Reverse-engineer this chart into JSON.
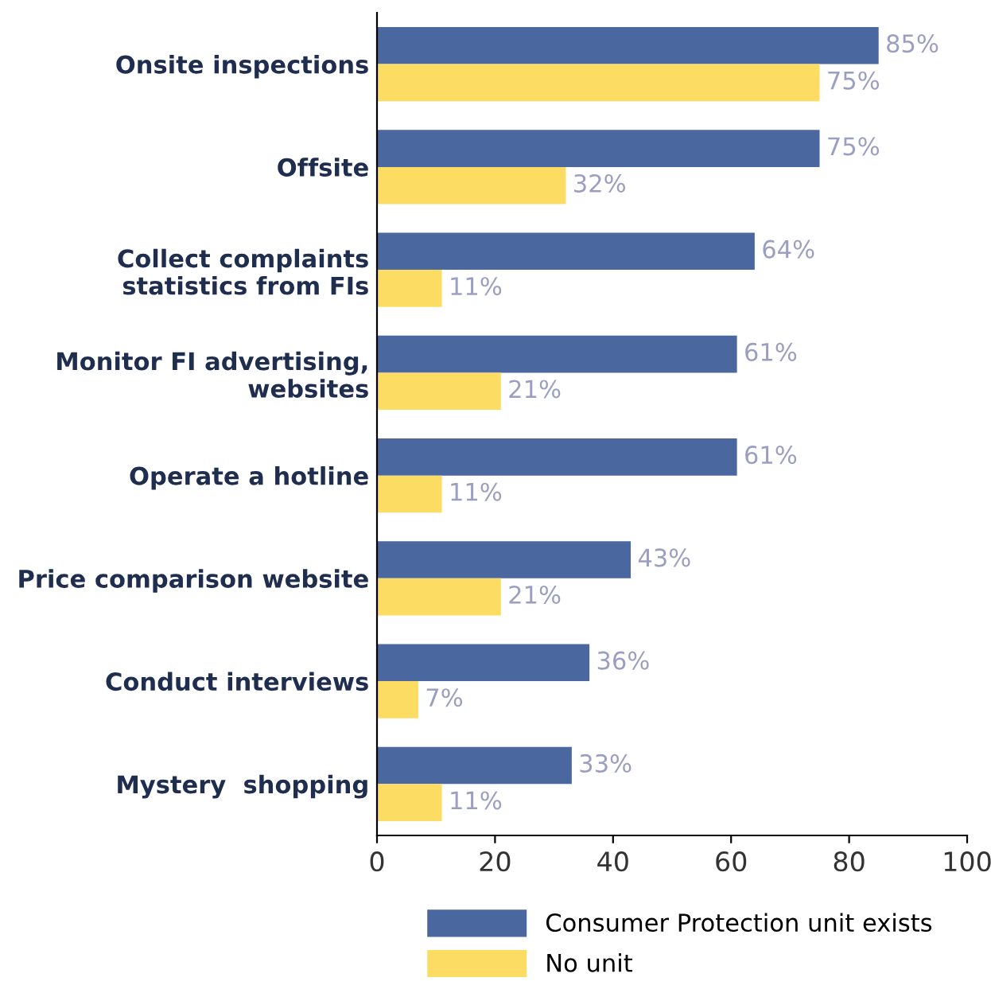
{
  "chart_data": {
    "type": "bar",
    "orientation": "horizontal",
    "categories": [
      "Onsite inspections",
      "Offsite",
      "Collect complaints\nstatistics from FIs",
      "Monitor FI advertising,\nwebsites",
      "Operate a hotline",
      "Price comparison website",
      "Conduct interviews",
      "Mystery  shopping"
    ],
    "series": [
      {
        "name": "Consumer Protection unit exists",
        "color": "#4a67a0",
        "values": [
          85,
          75,
          64,
          61,
          61,
          43,
          36,
          33
        ],
        "value_labels": [
          "85%",
          "75%",
          "64%",
          "61%",
          "61%",
          "43%",
          "36%",
          "33%"
        ]
      },
      {
        "name": "No unit",
        "color": "#fddc64",
        "values": [
          75,
          32,
          11,
          21,
          11,
          21,
          7,
          11
        ],
        "value_labels": [
          "75%",
          "32%",
          "11%",
          "21%",
          "11%",
          "21%",
          "7%",
          "11%"
        ]
      }
    ],
    "xlim": [
      0,
      100
    ],
    "xticks": [
      0,
      20,
      40,
      60,
      80,
      100
    ],
    "grid": false,
    "legend": "bottom"
  }
}
